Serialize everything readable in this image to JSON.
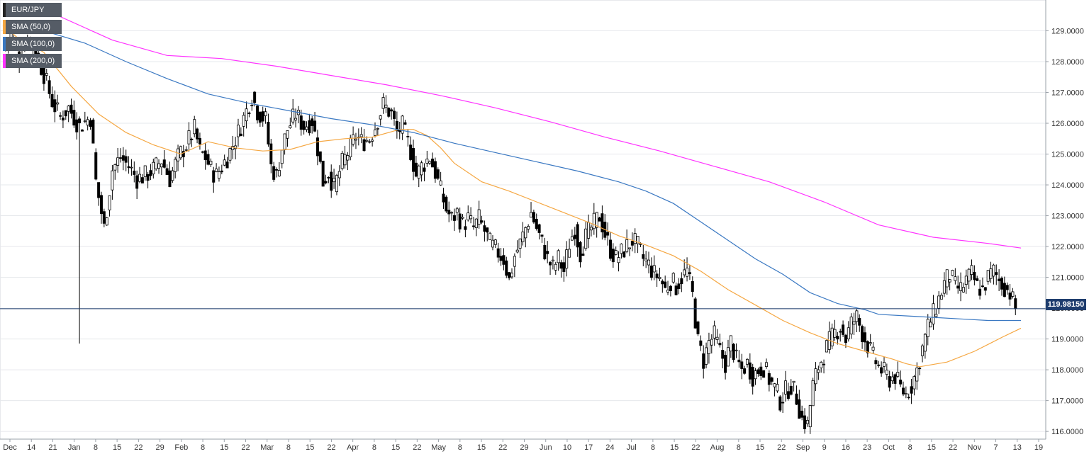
{
  "chart_data": {
    "type": "candlestick",
    "instrument": "EUR/JPY",
    "timeframe": "daily",
    "y_axis": {
      "min": 115.75,
      "max": 130.0,
      "ticks": [
        "116.0000",
        "117.0000",
        "118.0000",
        "119.0000",
        "120.0000",
        "121.0000",
        "122.0000",
        "123.0000",
        "124.0000",
        "125.0000",
        "126.0000",
        "127.0000",
        "128.0000",
        "129.0000"
      ]
    },
    "x_axis": {
      "labels": [
        "Dec",
        "14",
        "21",
        "Jan",
        "8",
        "15",
        "22",
        "29",
        "Feb",
        "8",
        "15",
        "22",
        "Mar",
        "8",
        "15",
        "22",
        "Apr",
        "8",
        "15",
        "22",
        "May",
        "8",
        "15",
        "22",
        "29",
        "Jun",
        "10",
        "17",
        "24",
        "Jul",
        "8",
        "15",
        "22",
        "Aug",
        "8",
        "15",
        "22",
        "Sep",
        "9",
        "16",
        "23",
        "Oct",
        "8",
        "15",
        "22",
        "Nov",
        "7",
        "13",
        "19"
      ]
    },
    "current_price": 119.9815,
    "current_price_label": "119.98150",
    "grid": true,
    "legend_position": "top-left",
    "legend": [
      {
        "label": "EUR/JPY",
        "color": "#222222"
      },
      {
        "label": "SMA (50,0)",
        "color": "#f5a742"
      },
      {
        "label": "SMA (100,0)",
        "color": "#3a78c2"
      },
      {
        "label": "SMA (200,0)",
        "color": "#ff33ff"
      }
    ],
    "close_path": [
      [
        0,
        128.4
      ],
      [
        3,
        128.9
      ],
      [
        6,
        128.2
      ],
      [
        9,
        128.8
      ],
      [
        12,
        128.3
      ],
      [
        15,
        127.6
      ],
      [
        18,
        126.7
      ],
      [
        21,
        126.2
      ],
      [
        24,
        126.5
      ],
      [
        28,
        125.9
      ],
      [
        32,
        126.2
      ],
      [
        34,
        124.1
      ],
      [
        37,
        122.6
      ],
      [
        40,
        124.5
      ],
      [
        43,
        124.9
      ],
      [
        46,
        124.6
      ],
      [
        49,
        124.2
      ],
      [
        52,
        124.3
      ],
      [
        55,
        124.5
      ],
      [
        58,
        124.8
      ],
      [
        61,
        124.2
      ],
      [
        64,
        124.9
      ],
      [
        67,
        125.3
      ],
      [
        70,
        125.8
      ],
      [
        72,
        125.1
      ],
      [
        74,
        124.9
      ],
      [
        76,
        124.5
      ],
      [
        78,
        124.3
      ],
      [
        80,
        124.6
      ],
      [
        82,
        124.9
      ],
      [
        84,
        125.3
      ],
      [
        86,
        125.7
      ],
      [
        89,
        126.4
      ],
      [
        91,
        126.9
      ],
      [
        93,
        126.4
      ],
      [
        96,
        126.1
      ],
      [
        98,
        124.6
      ],
      [
        100,
        124.3
      ],
      [
        102,
        125.2
      ],
      [
        104,
        125.8
      ],
      [
        107,
        126.3
      ],
      [
        110,
        125.9
      ],
      [
        113,
        126.1
      ],
      [
        115,
        125.2
      ],
      [
        117,
        124.1
      ],
      [
        119,
        124.4
      ],
      [
        121,
        123.9
      ],
      [
        124,
        124.7
      ],
      [
        127,
        125.2
      ],
      [
        129,
        125.6
      ],
      [
        131,
        125.4
      ],
      [
        134,
        125.5
      ],
      [
        136,
        125.9
      ],
      [
        139,
        126.6
      ],
      [
        142,
        126.3
      ],
      [
        144,
        125.7
      ],
      [
        146,
        125.9
      ],
      [
        149,
        125.1
      ],
      [
        151,
        124.3
      ],
      [
        153,
        124.6
      ],
      [
        156,
        124.9
      ],
      [
        158,
        124.4
      ],
      [
        160,
        123.8
      ],
      [
        162,
        123.2
      ],
      [
        164,
        122.9
      ],
      [
        166,
        123.1
      ],
      [
        168,
        122.7
      ],
      [
        170,
        122.9
      ],
      [
        172,
        122.6
      ],
      [
        174,
        122.9
      ],
      [
        176,
        122.5
      ],
      [
        178,
        122.1
      ],
      [
        181,
        121.8
      ],
      [
        183,
        121.6
      ],
      [
        185,
        120.9
      ],
      [
        187,
        121.7
      ],
      [
        189,
        122.1
      ],
      [
        191,
        122.6
      ],
      [
        193,
        123.1
      ],
      [
        195,
        122.6
      ],
      [
        197,
        122.1
      ],
      [
        199,
        121.6
      ],
      [
        201,
        121.3
      ],
      [
        203,
        121.6
      ],
      [
        205,
        121.2
      ],
      [
        207,
        122.1
      ],
      [
        209,
        122.6
      ],
      [
        211,
        121.8
      ],
      [
        213,
        122.3
      ],
      [
        215,
        122.6
      ],
      [
        218,
        123.0
      ],
      [
        220,
        122.4
      ],
      [
        222,
        121.9
      ],
      [
        224,
        121.6
      ],
      [
        226,
        121.8
      ],
      [
        228,
        122.0
      ],
      [
        230,
        122.2
      ],
      [
        232,
        122.0
      ],
      [
        234,
        121.6
      ],
      [
        236,
        121.4
      ],
      [
        238,
        121.1
      ],
      [
        240,
        121.0
      ],
      [
        242,
        120.6
      ],
      [
        244,
        120.9
      ],
      [
        246,
        120.7
      ],
      [
        248,
        121.0
      ],
      [
        250,
        121.2
      ],
      [
        252,
        120.4
      ],
      [
        254,
        118.9
      ],
      [
        256,
        118.3
      ],
      [
        258,
        118.9
      ],
      [
        260,
        119.1
      ],
      [
        262,
        118.6
      ],
      [
        264,
        118.2
      ],
      [
        266,
        118.9
      ],
      [
        268,
        118.3
      ],
      [
        270,
        118.0
      ],
      [
        272,
        118.2
      ],
      [
        274,
        117.8
      ],
      [
        276,
        118.0
      ],
      [
        278,
        118.1
      ],
      [
        280,
        117.7
      ],
      [
        282,
        117.4
      ],
      [
        284,
        117.0
      ],
      [
        286,
        117.3
      ],
      [
        288,
        117.5
      ],
      [
        290,
        117.1
      ],
      [
        292,
        116.4
      ],
      [
        294,
        116.2
      ],
      [
        296,
        117.5
      ],
      [
        298,
        118.1
      ],
      [
        300,
        118.5
      ],
      [
        302,
        118.9
      ],
      [
        304,
        119.2
      ],
      [
        306,
        119.4
      ],
      [
        308,
        119.0
      ],
      [
        310,
        119.5
      ],
      [
        312,
        119.7
      ],
      [
        314,
        119.2
      ],
      [
        316,
        118.8
      ],
      [
        318,
        118.4
      ],
      [
        320,
        118.1
      ],
      [
        322,
        117.9
      ],
      [
        324,
        117.7
      ],
      [
        326,
        117.8
      ],
      [
        328,
        117.4
      ],
      [
        330,
        117.2
      ],
      [
        332,
        117.5
      ],
      [
        334,
        118.0
      ],
      [
        336,
        118.7
      ],
      [
        338,
        119.4
      ],
      [
        340,
        119.8
      ],
      [
        342,
        120.3
      ],
      [
        344,
        120.8
      ],
      [
        346,
        121.1
      ],
      [
        348,
        120.7
      ],
      [
        350,
        120.6
      ],
      [
        352,
        120.9
      ],
      [
        354,
        121.1
      ],
      [
        356,
        120.7
      ],
      [
        358,
        120.6
      ],
      [
        360,
        121.0
      ],
      [
        362,
        121.2
      ],
      [
        364,
        120.9
      ],
      [
        366,
        120.7
      ],
      [
        368,
        120.5
      ],
      [
        370,
        119.98
      ]
    ],
    "series": [
      {
        "name": "SMA (50,0)",
        "values": [
          [
            0,
            129.2
          ],
          [
            5,
            128.8
          ],
          [
            15,
            128.3
          ],
          [
            25,
            127.2
          ],
          [
            35,
            126.3
          ],
          [
            45,
            125.7
          ],
          [
            55,
            125.3
          ],
          [
            65,
            125.0
          ],
          [
            75,
            125.4
          ],
          [
            85,
            125.2
          ],
          [
            95,
            125.1
          ],
          [
            105,
            125.15
          ],
          [
            115,
            125.4
          ],
          [
            125,
            125.5
          ],
          [
            135,
            125.55
          ],
          [
            145,
            125.8
          ],
          [
            150,
            125.8
          ],
          [
            155,
            125.6
          ],
          [
            160,
            125.2
          ],
          [
            165,
            124.7
          ],
          [
            175,
            124.1
          ],
          [
            185,
            123.8
          ],
          [
            195,
            123.45
          ],
          [
            205,
            123.1
          ],
          [
            215,
            122.75
          ],
          [
            225,
            122.35
          ],
          [
            235,
            122.05
          ],
          [
            245,
            121.7
          ],
          [
            255,
            121.2
          ],
          [
            265,
            120.6
          ],
          [
            275,
            120.1
          ],
          [
            285,
            119.6
          ],
          [
            295,
            119.2
          ],
          [
            305,
            118.85
          ],
          [
            315,
            118.6
          ],
          [
            325,
            118.35
          ],
          [
            330,
            118.2
          ],
          [
            335,
            118.1
          ],
          [
            345,
            118.25
          ],
          [
            355,
            118.6
          ],
          [
            365,
            119.05
          ],
          [
            372,
            119.35
          ]
        ]
      },
      {
        "name": "SMA (100,0)",
        "values": [
          [
            0,
            129.15
          ],
          [
            15,
            129.0
          ],
          [
            30,
            128.6
          ],
          [
            45,
            128.0
          ],
          [
            60,
            127.45
          ],
          [
            75,
            126.95
          ],
          [
            90,
            126.65
          ],
          [
            105,
            126.4
          ],
          [
            120,
            126.15
          ],
          [
            135,
            125.95
          ],
          [
            150,
            125.7
          ],
          [
            165,
            125.35
          ],
          [
            180,
            125.05
          ],
          [
            195,
            124.75
          ],
          [
            210,
            124.45
          ],
          [
            225,
            124.1
          ],
          [
            235,
            123.8
          ],
          [
            245,
            123.4
          ],
          [
            255,
            122.8
          ],
          [
            265,
            122.2
          ],
          [
            275,
            121.6
          ],
          [
            285,
            121.1
          ],
          [
            295,
            120.5
          ],
          [
            305,
            120.15
          ],
          [
            315,
            119.95
          ],
          [
            320,
            119.8
          ],
          [
            330,
            119.75
          ],
          [
            340,
            119.7
          ],
          [
            350,
            119.65
          ],
          [
            360,
            119.6
          ],
          [
            372,
            119.6
          ]
        ]
      },
      {
        "name": "SMA (200,0)",
        "values": [
          [
            0,
            129.8
          ],
          [
            20,
            129.5
          ],
          [
            40,
            128.7
          ],
          [
            60,
            128.2
          ],
          [
            80,
            128.1
          ],
          [
            100,
            127.85
          ],
          [
            120,
            127.55
          ],
          [
            140,
            127.25
          ],
          [
            160,
            126.9
          ],
          [
            180,
            126.5
          ],
          [
            200,
            126.05
          ],
          [
            220,
            125.55
          ],
          [
            240,
            125.1
          ],
          [
            260,
            124.6
          ],
          [
            280,
            124.1
          ],
          [
            300,
            123.45
          ],
          [
            320,
            122.7
          ],
          [
            340,
            122.3
          ],
          [
            360,
            122.1
          ],
          [
            372,
            121.95
          ]
        ]
      }
    ]
  }
}
